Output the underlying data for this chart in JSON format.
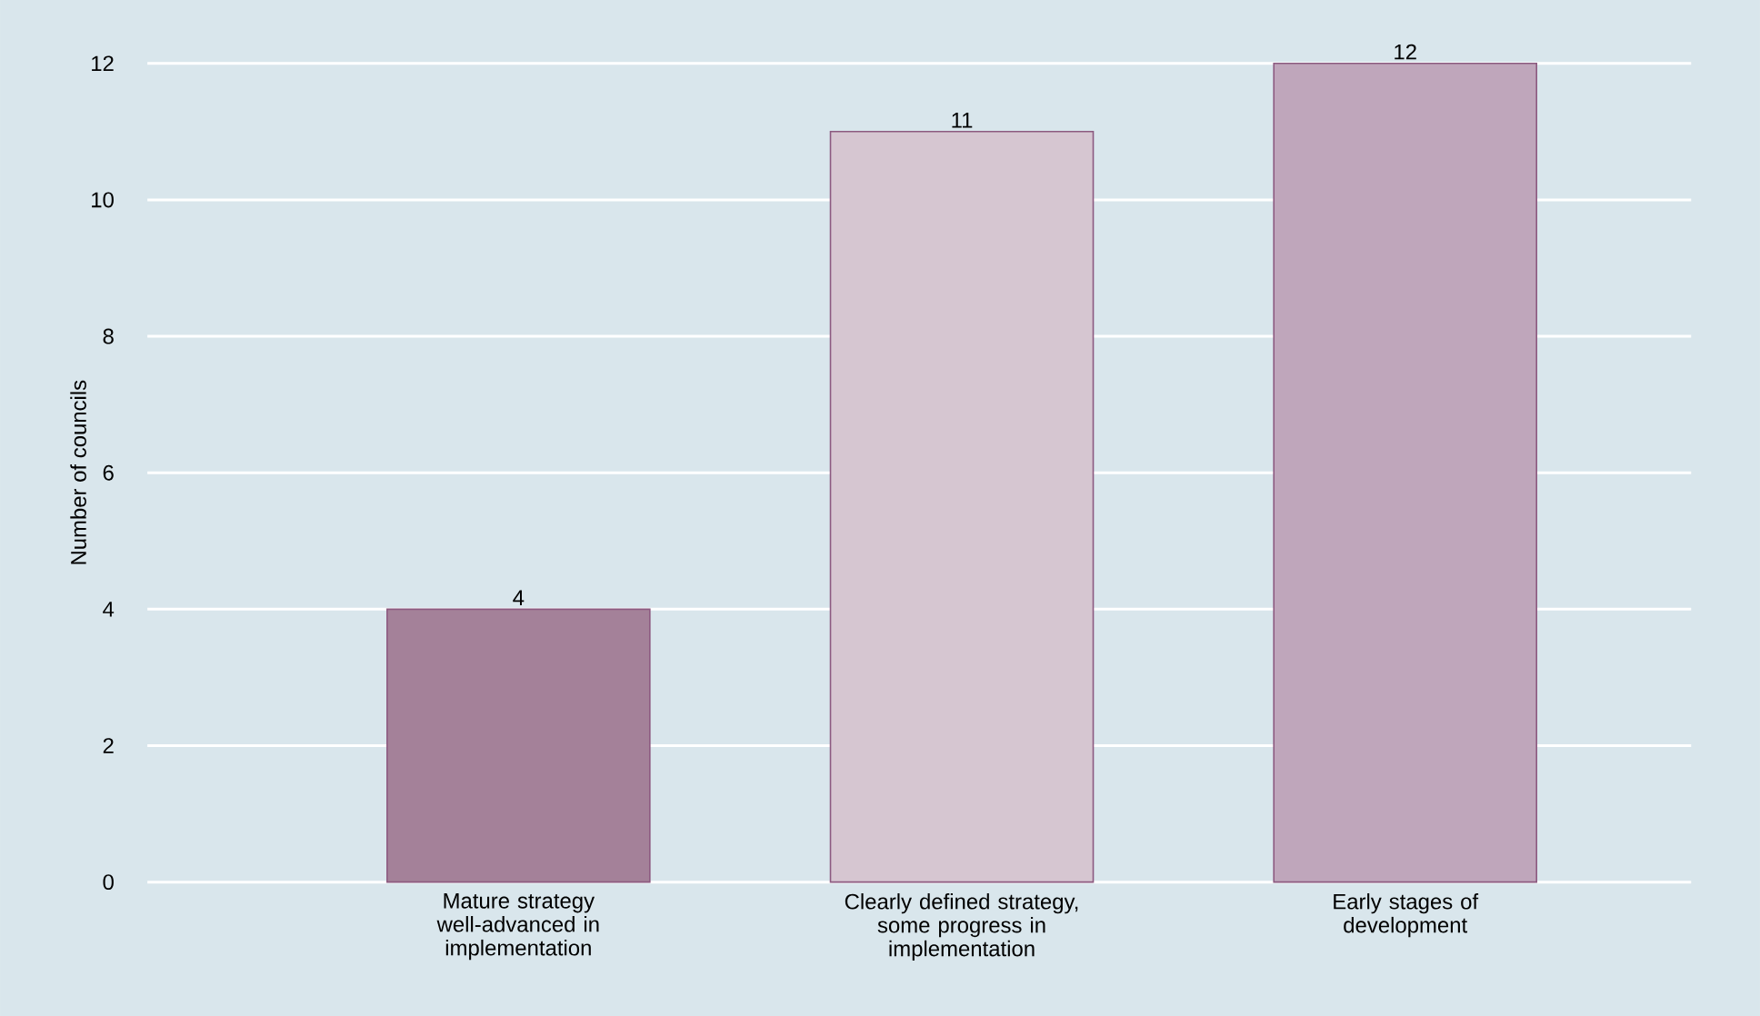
{
  "chart_data": {
    "type": "bar",
    "ylabel": "Number of councils",
    "categories": [
      "Mature strategy well-advanced in implementation",
      "Clearly defined strategy, some progress in implementation",
      "Early stages of development"
    ],
    "values": [
      4,
      11,
      12
    ],
    "colors": [
      "#a48199",
      "#d6c6d1",
      "#bfa6bb"
    ],
    "ylim": [
      0,
      12
    ],
    "yticks": [
      0,
      2,
      4,
      6,
      8,
      10,
      12
    ],
    "grid": "y",
    "data_labels": true
  }
}
